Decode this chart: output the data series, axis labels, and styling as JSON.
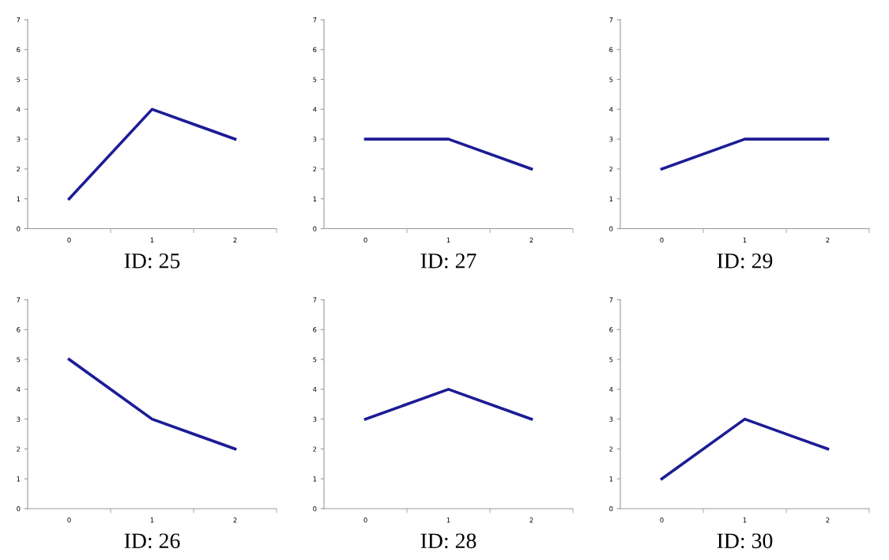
{
  "chart_data": [
    {
      "type": "line",
      "title": "ID: 25",
      "categories": [
        "0",
        "1",
        "2"
      ],
      "series": [
        {
          "color": "#1c1c96",
          "values": [
            1,
            4,
            3
          ]
        }
      ],
      "ylim": [
        0,
        7
      ],
      "yticks": [
        0,
        1,
        2,
        3,
        4,
        5,
        6,
        7
      ],
      "grid": false,
      "legend": false
    },
    {
      "type": "line",
      "title": "ID: 27",
      "categories": [
        "0",
        "1",
        "2"
      ],
      "series": [
        {
          "color": "#1c1c96",
          "values": [
            3,
            3,
            2
          ]
        }
      ],
      "ylim": [
        0,
        7
      ],
      "yticks": [
        0,
        1,
        2,
        3,
        4,
        5,
        6,
        7
      ],
      "grid": false,
      "legend": false
    },
    {
      "type": "line",
      "title": "ID: 29",
      "categories": [
        "0",
        "1",
        "2"
      ],
      "series": [
        {
          "color": "#1c1c96",
          "values": [
            2,
            3,
            3
          ]
        }
      ],
      "ylim": [
        0,
        7
      ],
      "yticks": [
        0,
        1,
        2,
        3,
        4,
        5,
        6,
        7
      ],
      "grid": false,
      "legend": false
    },
    {
      "type": "line",
      "title": "ID: 26",
      "categories": [
        "0",
        "1",
        "2"
      ],
      "series": [
        {
          "color": "#1c1c96",
          "values": [
            5,
            3,
            2
          ]
        }
      ],
      "ylim": [
        0,
        7
      ],
      "yticks": [
        0,
        1,
        2,
        3,
        4,
        5,
        6,
        7
      ],
      "grid": false,
      "legend": false
    },
    {
      "type": "line",
      "title": "ID: 28",
      "categories": [
        "0",
        "1",
        "2"
      ],
      "series": [
        {
          "color": "#1c1c96",
          "values": [
            3,
            4,
            3
          ]
        }
      ],
      "ylim": [
        0,
        7
      ],
      "yticks": [
        0,
        1,
        2,
        3,
        4,
        5,
        6,
        7
      ],
      "grid": false,
      "legend": false
    },
    {
      "type": "line",
      "title": "ID: 30",
      "categories": [
        "0",
        "1",
        "2"
      ],
      "series": [
        {
          "color": "#1c1c96",
          "values": [
            1,
            3,
            2
          ]
        }
      ],
      "ylim": [
        0,
        7
      ],
      "yticks": [
        0,
        1,
        2,
        3,
        4,
        5,
        6,
        7
      ],
      "grid": false,
      "legend": false
    }
  ]
}
